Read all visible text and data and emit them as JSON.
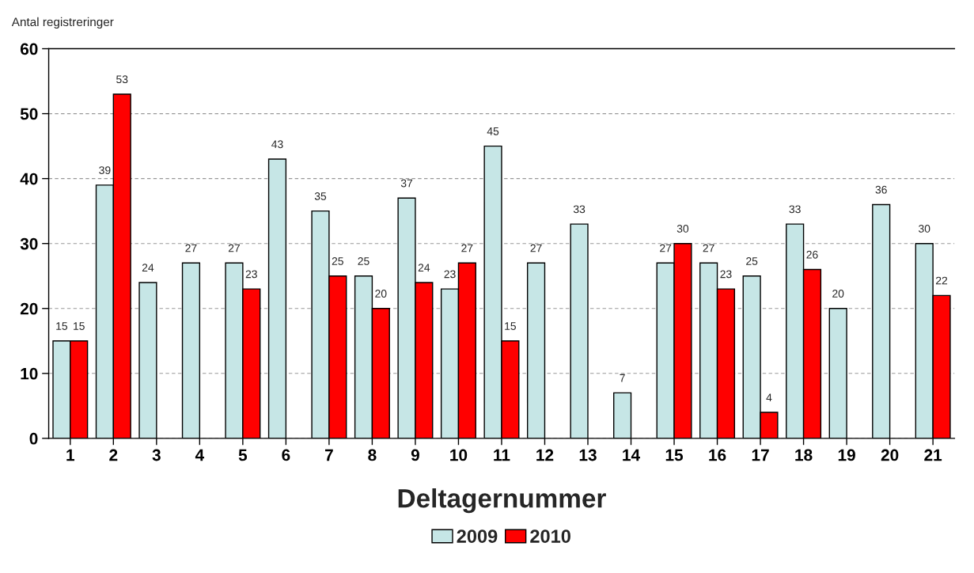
{
  "chart_data": {
    "type": "bar",
    "xlabel": "Deltagernummer",
    "ylabel": "Antal registreringer",
    "categories": [
      "1",
      "2",
      "3",
      "4",
      "5",
      "6",
      "7",
      "8",
      "9",
      "10",
      "11",
      "12",
      "13",
      "14",
      "15",
      "16",
      "17",
      "18",
      "19",
      "20",
      "21"
    ],
    "series": [
      {
        "name": "2009",
        "color": "#c6e6e6",
        "values": [
          15,
          39,
          24,
          27,
          27,
          43,
          35,
          25,
          37,
          23,
          45,
          27,
          33,
          7,
          27,
          27,
          25,
          33,
          20,
          36,
          30
        ]
      },
      {
        "name": "2010",
        "color": "#ff0000",
        "values": [
          15,
          53,
          null,
          null,
          23,
          null,
          25,
          20,
          24,
          27,
          15,
          null,
          null,
          null,
          30,
          23,
          4,
          26,
          null,
          null,
          22
        ]
      }
    ],
    "ylim": [
      0,
      60
    ],
    "yticks": [
      0,
      10,
      20,
      30,
      40,
      50,
      60
    ],
    "grid": "y",
    "legend": "bottom",
    "data_labels": true
  }
}
